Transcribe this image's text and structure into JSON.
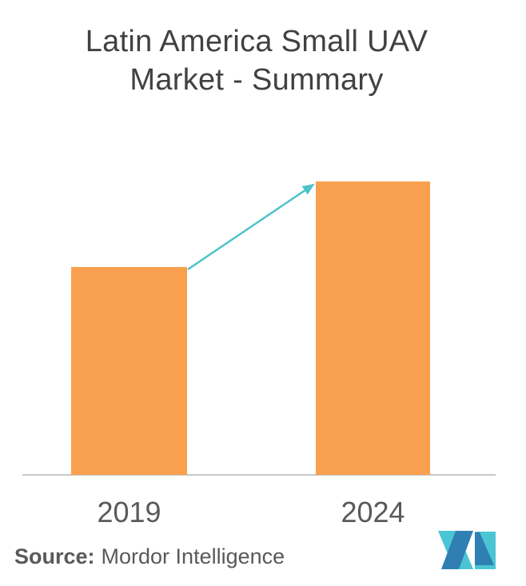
{
  "figure": {
    "title_lines": [
      "Latin America Small UAV",
      "Market - Summary"
    ],
    "source": {
      "label": "Source:",
      "text": "Mordor Intelligence"
    },
    "logo": {
      "brand": "Mordor Intelligence",
      "monogram": "MI"
    }
  },
  "colors": {
    "bar_orange": "#F9A04F",
    "arrow_teal": "#4EC3CB",
    "axis_gray": "#C8C8C9",
    "title_gray": "#414042",
    "label_gray": "#58595B",
    "logo_blue": "#2F7FB3",
    "logo_teal": "#4BC5D3",
    "background": "#FFFFFF"
  },
  "chart_data": {
    "type": "bar",
    "title": "Latin America Small UAV Market - Summary",
    "categories": [
      "2019",
      "2024"
    ],
    "values": [
      260,
      367
    ],
    "values_note": "no value axis shown; values are relative bar heights in px (2024 ≈ 1.41× 2019)",
    "xlabel": "",
    "ylabel": "",
    "grid": false,
    "legend": false,
    "annotations": [
      "teal growth arrow from top of 2019 bar to top of 2024 bar"
    ],
    "bar_color": "#F9A04F"
  }
}
